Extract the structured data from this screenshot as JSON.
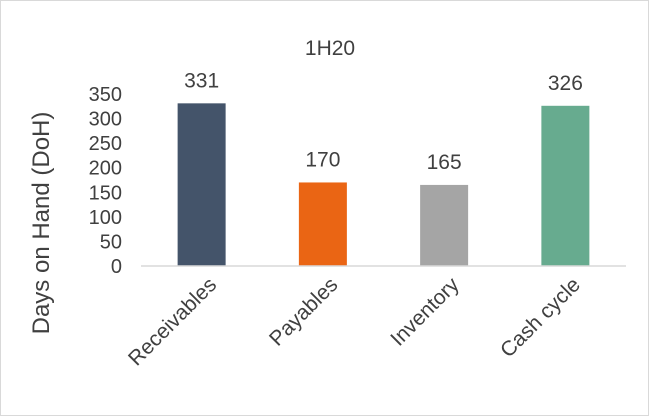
{
  "chart_data": {
    "type": "bar",
    "title": "1H20",
    "ylabel": "Days on Hand (DoH)",
    "xlabel": "",
    "categories": [
      "Receivables",
      "Payables",
      "Inventory",
      "Cash cycle"
    ],
    "values": [
      331,
      170,
      165,
      326
    ],
    "data_labels": [
      "331",
      "170",
      "165",
      "326"
    ],
    "colors": [
      "#44546a",
      "#ea6514",
      "#a5a5a5",
      "#67ab8f"
    ],
    "ylim": [
      0,
      350
    ],
    "yticks": [
      0,
      50,
      100,
      150,
      200,
      250,
      300,
      350
    ],
    "ytick_labels": [
      "0",
      "50",
      "100",
      "150",
      "200",
      "250",
      "300",
      "350"
    ],
    "grid": false,
    "legend": "none"
  }
}
